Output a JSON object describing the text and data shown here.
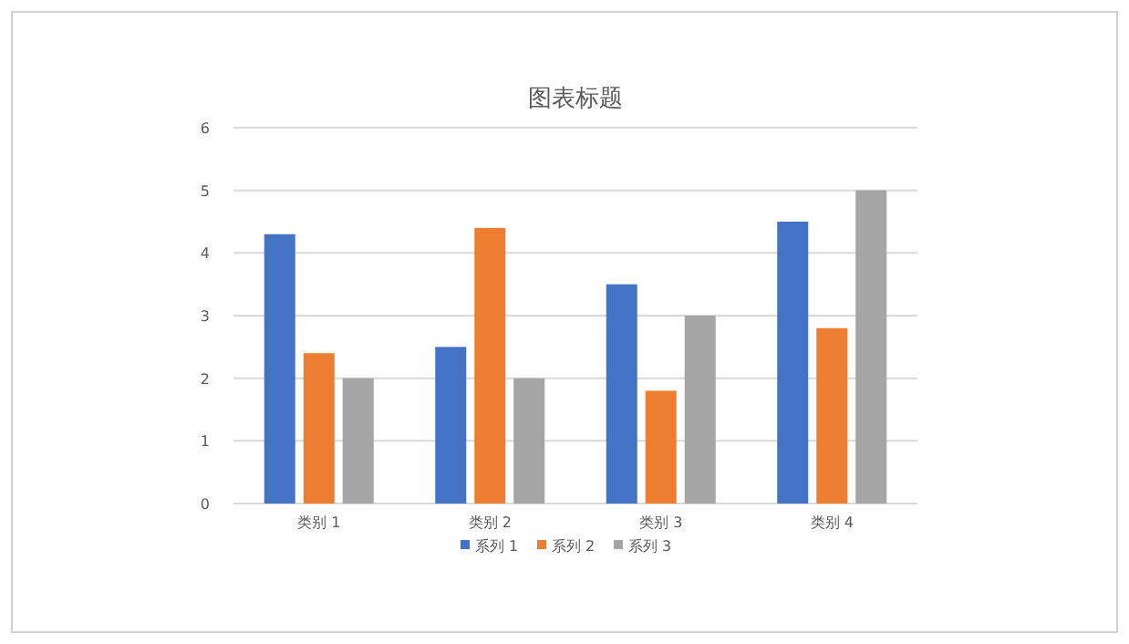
{
  "chart_data": {
    "type": "bar",
    "title": "图表标题",
    "categories": [
      "类别 1",
      "类别 2",
      "类别 3",
      "类别 4"
    ],
    "series": [
      {
        "name": "系列 1",
        "color": "#4472c4",
        "values": [
          4.3,
          2.5,
          3.5,
          4.5
        ]
      },
      {
        "name": "系列 2",
        "color": "#ed7d31",
        "values": [
          2.4,
          4.4,
          1.8,
          2.8
        ]
      },
      {
        "name": "系列 3",
        "color": "#a5a5a5",
        "values": [
          2,
          2,
          3,
          5
        ]
      }
    ],
    "ylim": [
      0,
      6
    ],
    "yticks": [
      0,
      1,
      2,
      3,
      4,
      5,
      6
    ],
    "grid": "y",
    "legend": "bottom"
  }
}
